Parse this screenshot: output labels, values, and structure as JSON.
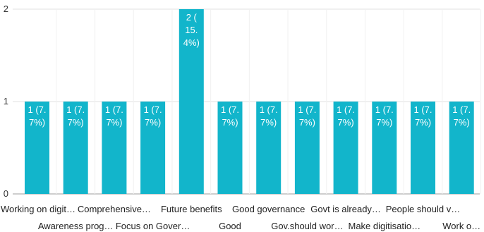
{
  "chart_data": {
    "type": "bar",
    "title": "",
    "xlabel": "",
    "ylabel": "",
    "ylim": [
      0,
      2
    ],
    "y_ticks": [
      "0",
      "1",
      "2"
    ],
    "grid": true,
    "legend": "none",
    "bar_color": "#12b5cb",
    "categories": [
      "Working on digit…",
      "Awareness prog…",
      "Comprehensive…",
      "Focus on Gover…",
      "Future benefits",
      "Good",
      "Good governance",
      "Gov.should wor…",
      "Govt is already…",
      "Make digitisatio…",
      "People should v…",
      "Work o…"
    ],
    "values": [
      1,
      1,
      1,
      1,
      2,
      1,
      1,
      1,
      1,
      1,
      1,
      1
    ],
    "data_labels": [
      [
        "1 (7.",
        "7%)"
      ],
      [
        "1 (7.",
        "7%)"
      ],
      [
        "1 (7.",
        "7%)"
      ],
      [
        "1 (7.",
        "7%)"
      ],
      [
        "2 (",
        "15.",
        "4%)"
      ],
      [
        "1 (7.",
        "7%)"
      ],
      [
        "1 (7.",
        "7%)"
      ],
      [
        "1 (7.",
        "7%)"
      ],
      [
        "1 (7.",
        "7%)"
      ],
      [
        "1 (7.",
        "7%)"
      ],
      [
        "1 (7.",
        "7%)"
      ],
      [
        "1 (7.",
        "7%)"
      ]
    ]
  }
}
